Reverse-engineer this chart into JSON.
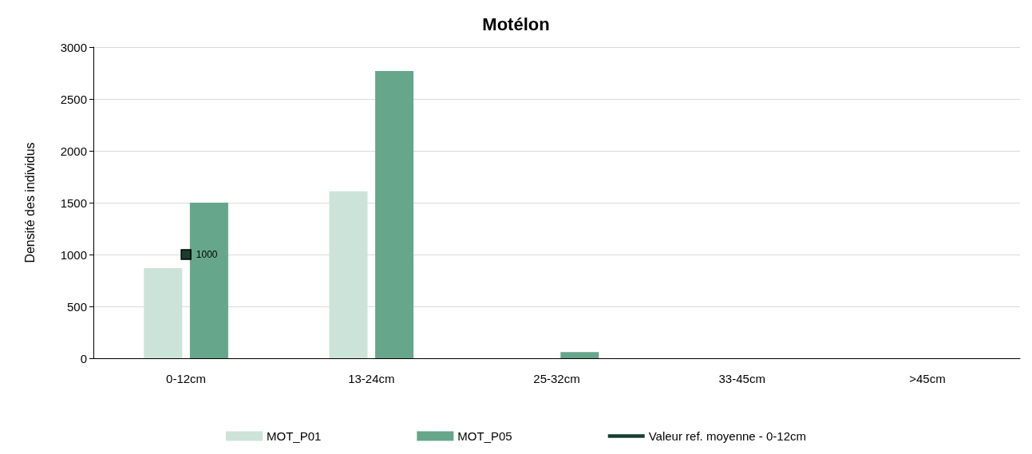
{
  "chart_data": {
    "type": "bar",
    "title": "Motélon",
    "ylabel": "Densité des individus",
    "categories": [
      "0-12cm",
      "13-24cm",
      "25-32cm",
      "33-45cm",
      ">45cm"
    ],
    "series": [
      {
        "name": "MOT_P01",
        "color": "#cce3da",
        "values": [
          870,
          1610,
          0,
          0,
          0
        ]
      },
      {
        "name": "MOT_P05",
        "color": "#66a68a",
        "values": [
          1500,
          2770,
          60,
          0,
          0
        ]
      },
      {
        "name": "Valeur ref. moyenne - 0-12cm",
        "type": "line",
        "marker": "square",
        "color": "#173d2c",
        "values": [
          1000,
          null,
          null,
          null,
          null
        ],
        "value_labels": [
          "1000",
          null,
          null,
          null,
          null
        ]
      }
    ],
    "ylim": [
      0,
      3000
    ],
    "yticks": [
      0,
      500,
      1000,
      1500,
      2000,
      2500,
      3000
    ],
    "grid": "y",
    "legend": "bottom"
  }
}
